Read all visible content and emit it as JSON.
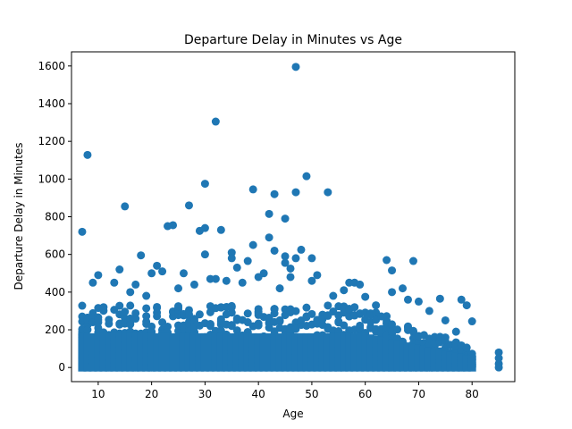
{
  "chart_data": {
    "type": "scatter",
    "title": "Departure Delay in Minutes vs Age",
    "xlabel": "Age",
    "ylabel": "Departure Delay in Minutes",
    "xlim": [
      5,
      88
    ],
    "ylim": [
      -75,
      1675
    ],
    "xticks": [
      10,
      20,
      30,
      40,
      50,
      60,
      70,
      80
    ],
    "yticks": [
      0,
      200,
      400,
      600,
      800,
      1000,
      1200,
      1400,
      1600
    ],
    "grid": false,
    "marker_color": "#1f77b4",
    "series": [
      {
        "name": "",
        "points": [
          [
            7,
            720
          ],
          [
            8,
            1128
          ],
          [
            9,
            450
          ],
          [
            10,
            490
          ],
          [
            11,
            320
          ],
          [
            13,
            450
          ],
          [
            14,
            520
          ],
          [
            15,
            855
          ],
          [
            16,
            400
          ],
          [
            17,
            440
          ],
          [
            18,
            595
          ],
          [
            19,
            380
          ],
          [
            20,
            500
          ],
          [
            21,
            540
          ],
          [
            22,
            510
          ],
          [
            23,
            750
          ],
          [
            24,
            755
          ],
          [
            25,
            420
          ],
          [
            26,
            500
          ],
          [
            27,
            860
          ],
          [
            28,
            440
          ],
          [
            29,
            725
          ],
          [
            30,
            975
          ],
          [
            30,
            740
          ],
          [
            30,
            600
          ],
          [
            31,
            470
          ],
          [
            32,
            1305
          ],
          [
            32,
            470
          ],
          [
            33,
            730
          ],
          [
            34,
            460
          ],
          [
            35,
            610
          ],
          [
            35,
            580
          ],
          [
            36,
            530
          ],
          [
            37,
            450
          ],
          [
            38,
            565
          ],
          [
            39,
            945
          ],
          [
            39,
            650
          ],
          [
            40,
            480
          ],
          [
            41,
            500
          ],
          [
            42,
            815
          ],
          [
            42,
            690
          ],
          [
            43,
            920
          ],
          [
            43,
            620
          ],
          [
            44,
            420
          ],
          [
            45,
            790
          ],
          [
            45,
            590
          ],
          [
            45,
            555
          ],
          [
            46,
            525
          ],
          [
            46,
            480
          ],
          [
            47,
            1595
          ],
          [
            47,
            930
          ],
          [
            47,
            580
          ],
          [
            48,
            625
          ],
          [
            49,
            1015
          ],
          [
            50,
            580
          ],
          [
            50,
            460
          ],
          [
            51,
            490
          ],
          [
            53,
            930
          ],
          [
            54,
            380
          ],
          [
            56,
            410
          ],
          [
            57,
            450
          ],
          [
            58,
            450
          ],
          [
            59,
            440
          ],
          [
            60,
            375
          ],
          [
            62,
            330
          ],
          [
            64,
            570
          ],
          [
            65,
            515
          ],
          [
            65,
            400
          ],
          [
            67,
            420
          ],
          [
            68,
            360
          ],
          [
            69,
            565
          ],
          [
            70,
            350
          ],
          [
            72,
            300
          ],
          [
            74,
            365
          ],
          [
            75,
            250
          ],
          [
            77,
            190
          ],
          [
            78,
            360
          ],
          [
            79,
            330
          ],
          [
            80,
            245
          ],
          [
            85,
            80
          ],
          [
            85,
            50
          ],
          [
            85,
            20
          ],
          [
            85,
            0
          ]
        ]
      }
    ]
  }
}
